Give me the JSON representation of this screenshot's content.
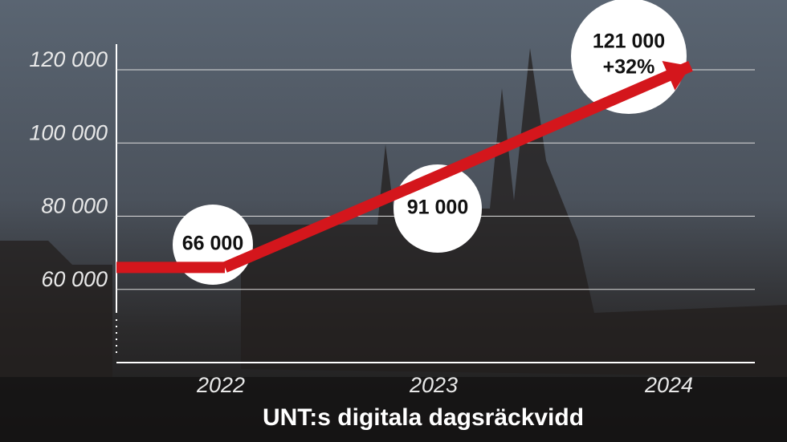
{
  "chart_data": {
    "type": "line",
    "title": "UNT:s digitala dagsräckvidd",
    "categories": [
      "2022",
      "2023",
      "2024"
    ],
    "values": [
      66000,
      91000,
      121000
    ],
    "value_labels": [
      "66 000",
      "91 000",
      "121 000"
    ],
    "annotation": "+32%",
    "color": "#d4161c",
    "ylim": [
      40000,
      127000
    ],
    "yticks": [
      {
        "value": 60000,
        "label": "60 000"
      },
      {
        "value": 80000,
        "label": "80 000"
      },
      {
        "value": 100000,
        "label": "100 000"
      },
      {
        "value": 120000,
        "label": "120 000"
      }
    ],
    "grid": true
  }
}
